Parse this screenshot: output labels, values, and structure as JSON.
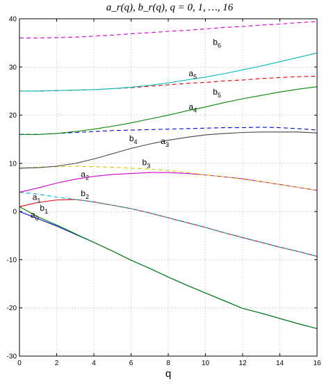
{
  "chart_data": {
    "type": "line",
    "title": "a_r(q),  b_r(q),  q = 0, 1, …, 16",
    "xlabel": "q",
    "ylabel": "",
    "xlim": [
      0,
      16
    ],
    "ylim": [
      -30,
      40
    ],
    "x_ticks": [
      0,
      2,
      4,
      6,
      8,
      10,
      12,
      14,
      16
    ],
    "y_ticks": [
      -30,
      -20,
      -10,
      0,
      10,
      20,
      30,
      40
    ],
    "grid": "dotted",
    "series": [
      {
        "name": "a0",
        "color": "#0000cc",
        "dash": "solid",
        "label_sub": "0",
        "label_base": "a",
        "label_at": [
          0.6,
          -1.3
        ],
        "x": [
          0,
          1,
          2,
          3,
          4,
          5,
          6,
          7,
          8,
          9,
          10,
          11,
          12,
          13,
          14,
          15,
          16
        ],
        "y": [
          0,
          -1.5,
          -3.0,
          -4.7,
          -6.4,
          -8.2,
          -10.1,
          -11.8,
          -13.6,
          -15.3,
          -16.9,
          -18.5,
          -20.1,
          -21.1,
          -22.2,
          -23.3,
          -24.3
        ]
      },
      {
        "name": "b1",
        "color": "#008800",
        "dash": "solid",
        "label_sub": "1",
        "label_base": "b",
        "label_at": [
          1.1,
          0.2
        ],
        "x": [
          0,
          1,
          2,
          3,
          4,
          5,
          6,
          7,
          8,
          9,
          10,
          11,
          12,
          13,
          14,
          15,
          16
        ],
        "y": [
          1,
          -1.1,
          -2.8,
          -4.6,
          -6.4,
          -8.2,
          -10.1,
          -11.8,
          -13.6,
          -15.3,
          -16.9,
          -18.5,
          -20.1,
          -21.1,
          -22.2,
          -23.3,
          -24.3
        ]
      },
      {
        "name": "a1",
        "color": "#dd0000",
        "dash": "solid",
        "label_sub": "1",
        "label_base": "a",
        "label_at": [
          0.7,
          2.4
        ],
        "x": [
          0,
          1,
          2,
          3,
          4,
          5,
          6,
          7,
          8,
          9,
          10,
          11,
          12,
          13,
          14,
          15,
          16
        ],
        "y": [
          1,
          1.9,
          2.4,
          2.5,
          2.0,
          1.3,
          0.6,
          -0.3,
          -1.3,
          -2.3,
          -3.3,
          -4.4,
          -5.4,
          -6.4,
          -7.4,
          -8.3,
          -9.3
        ]
      },
      {
        "name": "b2",
        "color": "#00aacc",
        "dash": "dashed",
        "label_sub": "2",
        "label_base": "b",
        "label_at": [
          3.3,
          3.2
        ],
        "x": [
          0,
          1,
          2,
          3,
          4,
          5,
          6,
          7,
          8,
          9,
          10,
          11,
          12,
          13,
          14,
          15,
          16
        ],
        "y": [
          4,
          3.6,
          3.0,
          2.5,
          2.0,
          1.3,
          0.6,
          -0.3,
          -1.3,
          -2.3,
          -3.3,
          -4.4,
          -5.4,
          -6.4,
          -7.4,
          -8.3,
          -9.3
        ]
      },
      {
        "name": "a2",
        "color": "#cc00cc",
        "dash": "solid",
        "label_sub": "2",
        "label_base": "a",
        "label_at": [
          3.3,
          7.2
        ],
        "x": [
          0,
          1,
          2,
          3,
          4,
          5,
          6,
          7,
          8,
          9,
          10,
          11,
          12,
          13,
          14,
          15,
          16
        ],
        "y": [
          4,
          4.9,
          5.9,
          6.7,
          7.3,
          7.7,
          7.9,
          8.1,
          8.1,
          7.9,
          7.6,
          7.2,
          6.8,
          6.2,
          5.6,
          5.0,
          4.4
        ]
      },
      {
        "name": "b3",
        "color": "#cccc00",
        "dash": "dashed",
        "label_sub": "3",
        "label_base": "b",
        "label_at": [
          6.6,
          9.6
        ],
        "x": [
          0,
          1,
          2,
          3,
          4,
          5,
          6,
          7,
          8,
          9,
          10,
          11,
          12,
          13,
          14,
          15,
          16
        ],
        "y": [
          9,
          9.2,
          9.3,
          9.4,
          9.3,
          9.2,
          9.0,
          8.8,
          8.5,
          8.1,
          7.6,
          7.2,
          6.7,
          6.2,
          5.6,
          5.0,
          4.4
        ]
      },
      {
        "name": "a3",
        "color": "#444444",
        "dash": "solid",
        "label_sub": "3",
        "label_base": "a",
        "label_at": [
          7.6,
          14.0
        ],
        "x": [
          0,
          1,
          2,
          3,
          4,
          5,
          6,
          7,
          8,
          9,
          10,
          11,
          12,
          13,
          14,
          15,
          16
        ],
        "y": [
          9,
          9.1,
          9.4,
          10.0,
          10.9,
          12.0,
          13.1,
          14.0,
          14.8,
          15.4,
          15.9,
          16.2,
          16.4,
          16.5,
          16.5,
          16.5,
          16.3
        ]
      },
      {
        "name": "b4",
        "color": "#0000cc",
        "dash": "dashed",
        "label_sub": "4",
        "label_base": "b",
        "label_at": [
          5.9,
          14.6
        ],
        "x": [
          0,
          1,
          2,
          3,
          4,
          5,
          6,
          7,
          8,
          9,
          10,
          11,
          12,
          13,
          14,
          15,
          16
        ],
        "y": [
          16,
          16.0,
          16.2,
          16.4,
          16.6,
          16.8,
          16.9,
          17.0,
          17.1,
          17.2,
          17.3,
          17.4,
          17.4,
          17.5,
          17.4,
          17.2,
          16.9
        ]
      },
      {
        "name": "a4",
        "color": "#008800",
        "dash": "solid",
        "label_sub": "4",
        "label_base": "a",
        "label_at": [
          9.1,
          21.2
        ],
        "x": [
          0,
          1,
          2,
          3,
          4,
          5,
          6,
          7,
          8,
          9,
          10,
          11,
          12,
          13,
          14,
          15,
          16
        ],
        "y": [
          16,
          16.0,
          16.2,
          16.6,
          17.1,
          17.7,
          18.4,
          19.2,
          20.0,
          20.9,
          21.7,
          22.6,
          23.4,
          24.1,
          24.8,
          25.4,
          25.9
        ]
      },
      {
        "name": "b5",
        "color": "#dd0000",
        "dash": "dashed",
        "label_sub": "5",
        "label_base": "b",
        "label_at": [
          10.4,
          24.3
        ],
        "x": [
          0,
          1,
          2,
          3,
          4,
          5,
          6,
          7,
          8,
          9,
          10,
          11,
          12,
          13,
          14,
          15,
          16
        ],
        "y": [
          25,
          25.0,
          25.1,
          25.2,
          25.3,
          25.5,
          25.7,
          26.0,
          26.3,
          26.6,
          26.8,
          27.1,
          27.3,
          27.6,
          27.8,
          28.0,
          28.1
        ]
      },
      {
        "name": "a5",
        "color": "#00bbbb",
        "dash": "solid",
        "label_sub": "5",
        "label_base": "a",
        "label_at": [
          9.1,
          28.1
        ],
        "x": [
          0,
          1,
          2,
          3,
          4,
          5,
          6,
          7,
          8,
          9,
          10,
          11,
          12,
          13,
          14,
          15,
          16
        ],
        "y": [
          25,
          25.0,
          25.1,
          25.2,
          25.3,
          25.5,
          25.8,
          26.2,
          26.7,
          27.3,
          27.9,
          28.6,
          29.4,
          30.2,
          31.1,
          32.0,
          32.9
        ]
      },
      {
        "name": "b6",
        "color": "#cc00cc",
        "dash": "dashed",
        "label_sub": "6",
        "label_base": "b",
        "label_at": [
          10.4,
          34.6
        ],
        "x": [
          0,
          1,
          2,
          3,
          4,
          5,
          6,
          7,
          8,
          9,
          10,
          11,
          12,
          13,
          14,
          15,
          16
        ],
        "y": [
          36,
          36.0,
          36.1,
          36.2,
          36.4,
          36.6,
          36.9,
          37.1,
          37.4,
          37.6,
          37.9,
          38.2,
          38.4,
          38.7,
          38.9,
          39.2,
          39.4
        ]
      }
    ]
  }
}
